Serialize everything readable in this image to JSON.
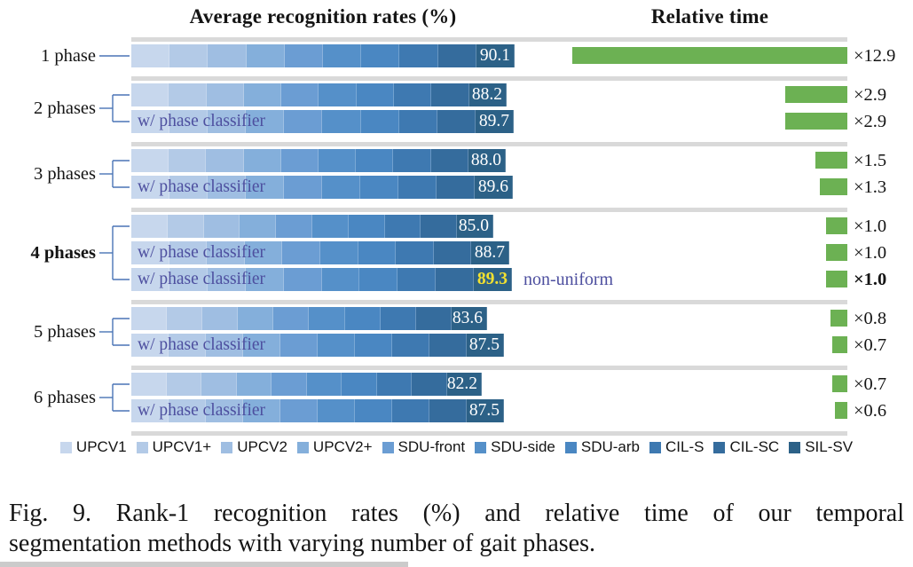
{
  "figure": {
    "left_title": "Average recognition rates (%)",
    "right_title": "Relative time",
    "caption_line1": "Fig. 9.   Rank-1 recognition rates (%) and relative time of our temporal",
    "caption_line2": "segmentation methods with varying number of gait phases."
  },
  "colors": {
    "segments": [
      "#c7d7ed",
      "#b3cae7",
      "#9fbee2",
      "#84afdb",
      "#6b9dd3",
      "#5590c9",
      "#4a87c2",
      "#3e79b1",
      "#356c9d",
      "#2c6187"
    ],
    "green": "#6cb153",
    "track": "#d9d9d9",
    "connector": "#4a74b5",
    "sublabel": "#4d4f9f",
    "highlight": "#f2e130",
    "value_text": "#ffffff"
  },
  "chart_data": {
    "type": "bar",
    "orientation": "horizontal",
    "title": "Average recognition rates (%)",
    "secondary_title": "Relative time",
    "datasets_legend": [
      "UPCV1",
      "UPCV1+",
      "UPCV2",
      "UPCV2+",
      "SDU-front",
      "SDU-side",
      "SDU-arb",
      "CIL-S",
      "CIL-SC",
      "SIL-SV"
    ],
    "segments_per_bar": 10,
    "rate_unit": "%",
    "groups": [
      {
        "label": "1 phase",
        "bold": false,
        "rows": [
          {
            "sublabel": "",
            "rate": 90.1,
            "rate_label": "90.1",
            "time": 12.9,
            "time_label": "×12.9"
          }
        ]
      },
      {
        "label": "2 phases",
        "bold": false,
        "rows": [
          {
            "sublabel": "",
            "rate": 88.2,
            "rate_label": "88.2",
            "time": 2.9,
            "time_label": "×2.9"
          },
          {
            "sublabel": "w/ phase classifier",
            "rate": 89.7,
            "rate_label": "89.7",
            "time": 2.9,
            "time_label": "×2.9"
          }
        ]
      },
      {
        "label": "3 phases",
        "bold": false,
        "rows": [
          {
            "sublabel": "",
            "rate": 88.0,
            "rate_label": "88.0",
            "time": 1.5,
            "time_label": "×1.5"
          },
          {
            "sublabel": "w/ phase classifier",
            "rate": 89.6,
            "rate_label": "89.6",
            "time": 1.3,
            "time_label": "×1.3"
          }
        ]
      },
      {
        "label": "4 phases",
        "bold": true,
        "rows": [
          {
            "sublabel": "",
            "rate": 85.0,
            "rate_label": "85.0",
            "time": 1.0,
            "time_label": "×1.0"
          },
          {
            "sublabel": "w/ phase classifier",
            "rate": 88.7,
            "rate_label": "88.7",
            "time": 1.0,
            "time_label": "×1.0"
          },
          {
            "sublabel": "w/ phase classifier",
            "rate": 89.3,
            "rate_label": "89.3",
            "time": 1.0,
            "time_label": "×1.0",
            "highlight": true,
            "annotation": "non-uniform",
            "time_bold": true
          }
        ]
      },
      {
        "label": "5 phases",
        "bold": false,
        "rows": [
          {
            "sublabel": "",
            "rate": 83.6,
            "rate_label": "83.6",
            "time": 0.8,
            "time_label": "×0.8"
          },
          {
            "sublabel": "w/ phase classifier",
            "rate": 87.5,
            "rate_label": "87.5",
            "time": 0.7,
            "time_label": "×0.7"
          }
        ]
      },
      {
        "label": "6 phases",
        "bold": false,
        "rows": [
          {
            "sublabel": "",
            "rate": 82.2,
            "rate_label": "82.2",
            "time": 0.7,
            "time_label": "×0.7"
          },
          {
            "sublabel": "w/ phase classifier",
            "rate": 87.5,
            "rate_label": "87.5",
            "time": 0.6,
            "time_label": "×0.6"
          }
        ]
      }
    ]
  }
}
